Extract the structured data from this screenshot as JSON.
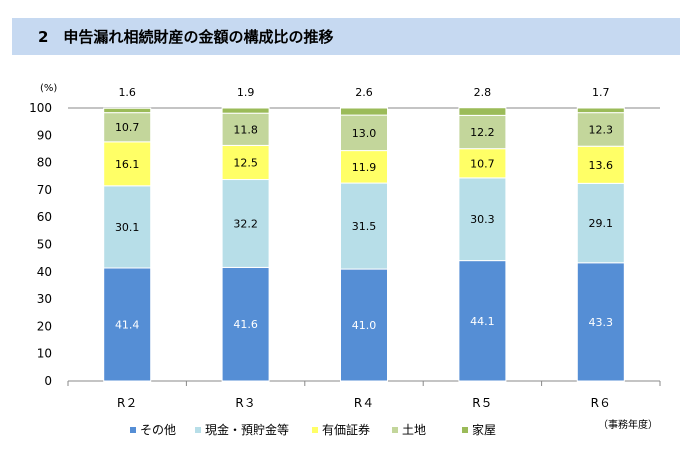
{
  "header": {
    "title": "2　申告漏れ相続財産の金額の構成比の推移"
  },
  "chart_data": {
    "type": "bar",
    "stacked": true,
    "title": "2　申告漏れ相続財産の金額の構成比の推移",
    "ylabel": "(%)",
    "xlabel": "（事務年度）",
    "ylim": [
      0,
      100
    ],
    "yticks": [
      0,
      10,
      20,
      30,
      40,
      50,
      60,
      70,
      80,
      90,
      100
    ],
    "categories": [
      "R２",
      "R３",
      "R４",
      "R５",
      "R６"
    ],
    "grid": false,
    "legend": "bottom",
    "series": [
      {
        "name": "その他",
        "color": "#558ED5",
        "values": [
          41.4,
          41.6,
          41.0,
          44.1,
          43.3
        ]
      },
      {
        "name": "現金・預貯金等",
        "color": "#B7DEE8",
        "values": [
          30.1,
          32.2,
          31.5,
          30.3,
          29.1
        ]
      },
      {
        "name": "有価証券",
        "color": "#FFFF66",
        "values": [
          16.1,
          12.5,
          11.9,
          10.7,
          13.6
        ]
      },
      {
        "name": "土地",
        "color": "#C3D69B",
        "values": [
          10.7,
          11.8,
          13.0,
          12.2,
          12.3
        ]
      },
      {
        "name": "家屋",
        "color": "#9BBB59",
        "values": [
          1.6,
          1.9,
          2.6,
          2.8,
          1.7
        ]
      }
    ]
  }
}
